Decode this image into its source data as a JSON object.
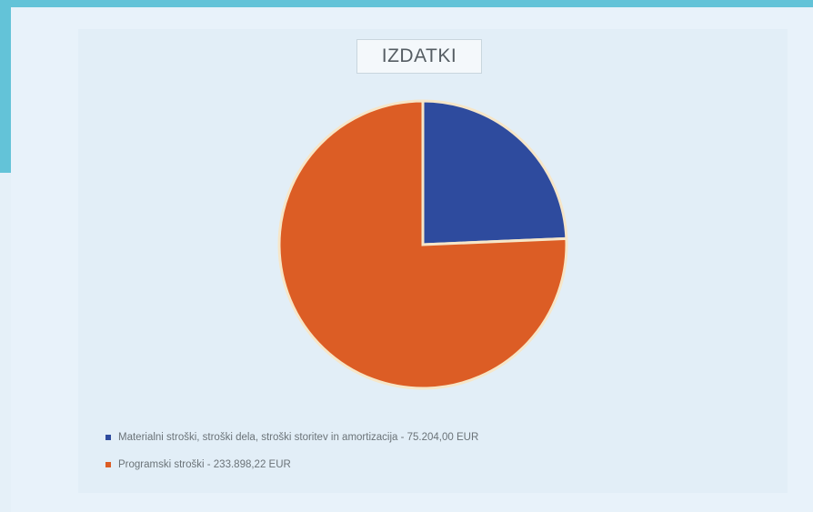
{
  "chart_data": {
    "type": "pie",
    "title": "IZDATKI",
    "slices": [
      {
        "label": "Materialni stroški, stroški dela, stroški storitev in amortizacija",
        "value": 75204.0,
        "value_text": "75.204,00 EUR",
        "color": "#2e4b9e"
      },
      {
        "label": "Programski stroški",
        "value": 233898.22,
        "value_text": "233.898,22 EUR",
        "color": "#dc5d25"
      }
    ],
    "legend_position": "bottom",
    "start_angle_deg": 0,
    "direction": "clockwise"
  },
  "legend": [
    {
      "text": "Materialni stroški, stroški dela, stroški storitev in amortizacija - 75.204,00 EUR"
    },
    {
      "text": "Programski stroški - 233.898,22 EUR"
    }
  ],
  "colors": {
    "background": "#63c3d8",
    "panel": "#e8f2fa",
    "slice_border": "#f6e6c8"
  }
}
